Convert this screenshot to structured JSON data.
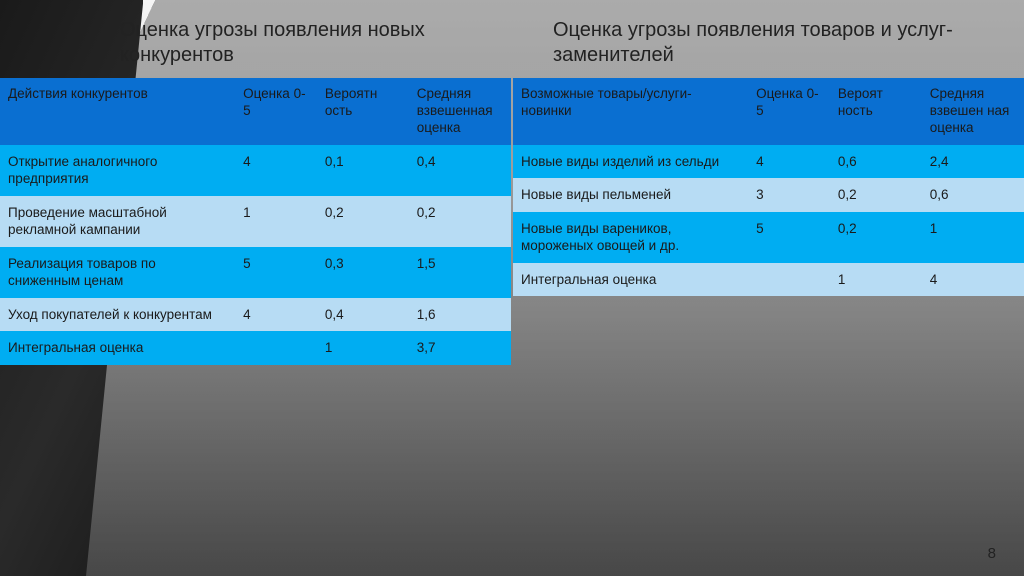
{
  "page_number": "8",
  "styling": {
    "header_bg": "#0a6fd1",
    "row_a_bg": "#00adf2",
    "row_b_bg": "#b7dcf4",
    "text_color": "#1a1a1a",
    "title_fontsize_pt": 20,
    "cell_fontsize_pt": 13.5,
    "font_family": "Arial"
  },
  "left": {
    "title": "Оценка угрозы появления новых конкурентов",
    "columns": [
      "Действия конкурентов",
      "Оценка 0-5",
      "Вероятн ость",
      "Средняя взвешенная оценка"
    ],
    "col_widths_pct": [
      46,
      16,
      18,
      20
    ],
    "rows": [
      {
        "band": "a",
        "cells": [
          "Открытие аналогичного предприятия",
          "4",
          "0,1",
          "0,4"
        ]
      },
      {
        "band": "b",
        "cells": [
          "Проведение масштабной рекламной кампании",
          "1",
          "0,2",
          "0,2"
        ]
      },
      {
        "band": "a",
        "cells": [
          "Реализация товаров по сниженным ценам",
          "5",
          "0,3",
          "1,5"
        ]
      },
      {
        "band": "b",
        "cells": [
          "Уход покупателей к конкурентам",
          "4",
          "0,4",
          "1,6"
        ]
      },
      {
        "band": "a",
        "cells": [
          "Интегральная оценка",
          "",
          "1",
          "3,7"
        ]
      }
    ]
  },
  "right": {
    "title": "Оценка угрозы появления товаров и услуг-заменителей",
    "columns": [
      "Возможные товары/услуги-новинки",
      "Оценка 0-5",
      "Вероят ность",
      "Средняя взвешен ная оценка"
    ],
    "col_widths_pct": [
      46,
      16,
      18,
      20
    ],
    "rows": [
      {
        "band": "a",
        "cells": [
          "Новые виды изделий из сельди",
          "4",
          "0,6",
          "2,4"
        ]
      },
      {
        "band": "b",
        "cells": [
          "Новые виды пельменей",
          "3",
          "0,2",
          "0,6"
        ]
      },
      {
        "band": "a",
        "cells": [
          "Новые виды вареников, мороженых овощей и др.",
          "5",
          "0,2",
          "1"
        ]
      },
      {
        "band": "b",
        "cells": [
          "Интегральная оценка",
          "",
          "1",
          "4"
        ]
      }
    ]
  }
}
